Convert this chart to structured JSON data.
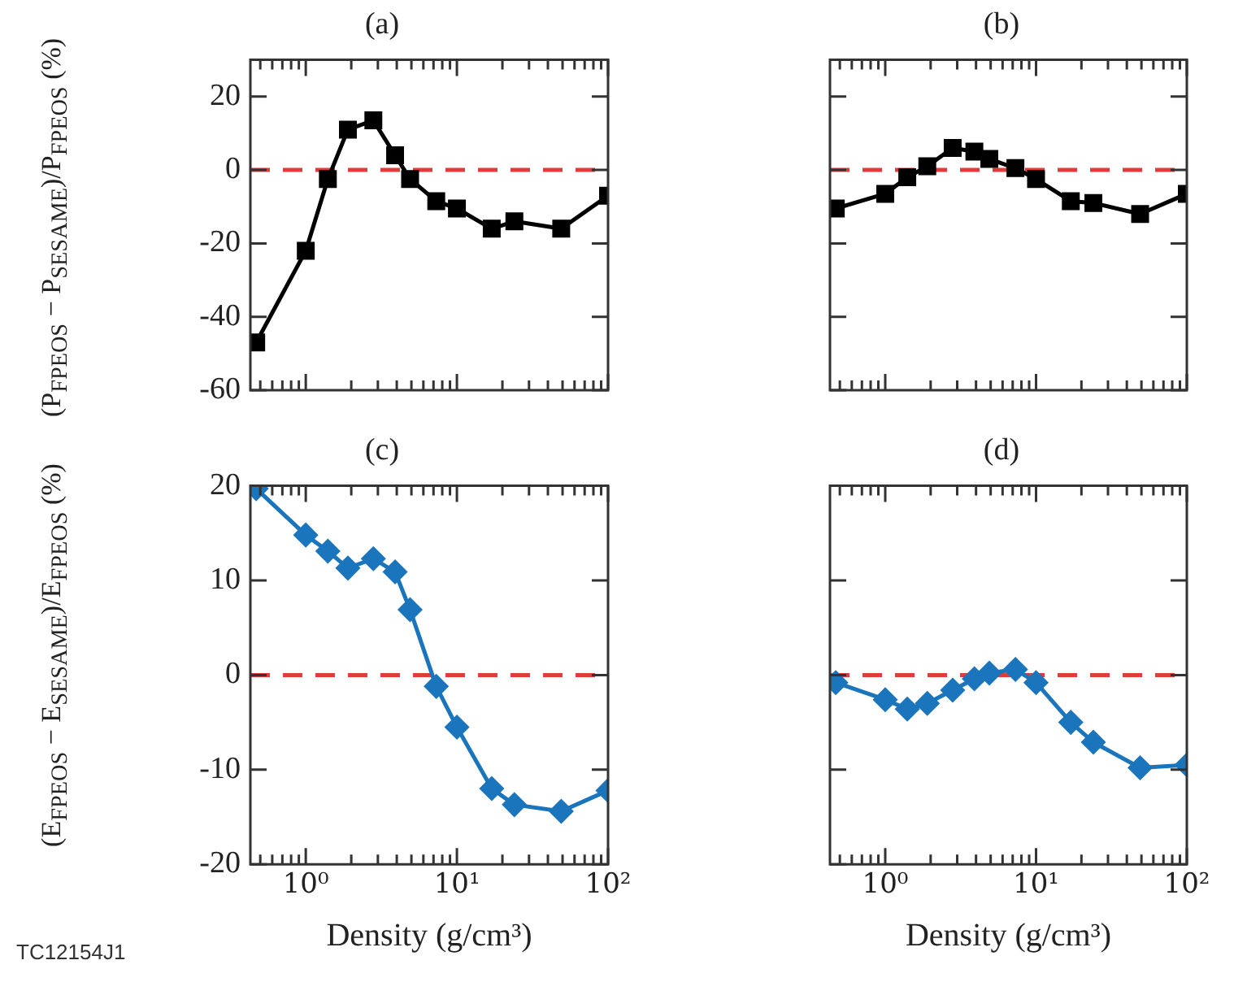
{
  "chart_data": [
    {
      "type": "line",
      "title": "(a)",
      "ylabel": "(P$_{FPEOS}$ − P$_{SESAME}$)/P$_{FPEOS}$ (%)",
      "x": [
        0.47,
        1,
        1.4,
        1.9,
        2.8,
        3.9,
        4.9,
        7.3,
        10,
        17,
        24,
        49,
        100
      ],
      "series": [
        {
          "color": "#000000",
          "values": [
            -47,
            -22,
            -2.5,
            11,
            13.5,
            4,
            -2.5,
            -8.5,
            -10.5,
            -16,
            -14,
            -16,
            -7
          ]
        }
      ],
      "xlim": [
        0.43,
        100
      ],
      "ylim": [
        -60,
        30
      ],
      "log": "x",
      "marker": "square",
      "tick_labels": "y",
      "xticks": [
        {
          "value": 0.5,
          "label": null
        },
        {
          "value": 0.6,
          "label": null
        },
        {
          "value": 0.7,
          "label": null
        },
        {
          "value": 0.8,
          "label": null
        },
        {
          "value": 0.9,
          "label": null
        },
        {
          "value": 1,
          "label": null
        },
        {
          "value": 2,
          "label": null
        },
        {
          "value": 3,
          "label": null
        },
        {
          "value": 4,
          "label": null
        },
        {
          "value": 5,
          "label": null
        },
        {
          "value": 6,
          "label": null
        },
        {
          "value": 7,
          "label": null
        },
        {
          "value": 8,
          "label": null
        },
        {
          "value": 9,
          "label": null
        },
        {
          "value": 10,
          "label": null
        },
        {
          "value": 20,
          "label": null
        },
        {
          "value": 30,
          "label": null
        },
        {
          "value": 40,
          "label": null
        },
        {
          "value": 50,
          "label": null
        },
        {
          "value": 60,
          "label": null
        },
        {
          "value": 70,
          "label": null
        },
        {
          "value": 80,
          "label": null
        },
        {
          "value": 90,
          "label": null
        },
        {
          "value": 100,
          "label": null
        }
      ],
      "yticks": [
        -60,
        -40,
        -20,
        0,
        20
      ],
      "ref_lines": [
        {
          "axis": "y",
          "value": 0,
          "color": "#e03c3c",
          "line_style": "dashed"
        }
      ]
    },
    {
      "type": "line",
      "title": "(b)",
      "x": [
        0.47,
        1,
        1.4,
        1.9,
        2.8,
        3.9,
        4.9,
        7.3,
        10,
        17,
        24,
        49,
        100
      ],
      "series": [
        {
          "color": "#000000",
          "values": [
            -10.5,
            -6.5,
            -2,
            1,
            6,
            5,
            3,
            0.5,
            -2.5,
            -8.5,
            -9,
            -12,
            -6.5
          ]
        }
      ],
      "xlim": [
        0.43,
        100
      ],
      "ylim": [
        -60,
        30
      ],
      "log": "x",
      "marker": "square",
      "tick_labels": false,
      "xticks": [
        {
          "value": 0.5,
          "label": null
        },
        {
          "value": 0.6,
          "label": null
        },
        {
          "value": 0.7,
          "label": null
        },
        {
          "value": 0.8,
          "label": null
        },
        {
          "value": 0.9,
          "label": null
        },
        {
          "value": 1,
          "label": null
        },
        {
          "value": 2,
          "label": null
        },
        {
          "value": 3,
          "label": null
        },
        {
          "value": 4,
          "label": null
        },
        {
          "value": 5,
          "label": null
        },
        {
          "value": 6,
          "label": null
        },
        {
          "value": 7,
          "label": null
        },
        {
          "value": 8,
          "label": null
        },
        {
          "value": 9,
          "label": null
        },
        {
          "value": 10,
          "label": null
        },
        {
          "value": 20,
          "label": null
        },
        {
          "value": 30,
          "label": null
        },
        {
          "value": 40,
          "label": null
        },
        {
          "value": 50,
          "label": null
        },
        {
          "value": 60,
          "label": null
        },
        {
          "value": 70,
          "label": null
        },
        {
          "value": 80,
          "label": null
        },
        {
          "value": 90,
          "label": null
        },
        {
          "value": 100,
          "label": null
        }
      ],
      "yticks": [
        -60,
        -40,
        -20,
        0,
        20
      ],
      "ref_lines": [
        {
          "axis": "y",
          "value": 0,
          "color": "#e03c3c",
          "line_style": "dashed"
        }
      ]
    },
    {
      "type": "line",
      "title": "(c)",
      "xlabel": "Density (g/cm³)",
      "ylabel": "(E$_{FPEOS}$ − E$_{SESAME}$)/E$_{FPEOS}$ (%)",
      "x": [
        0.47,
        1,
        1.4,
        1.9,
        2.8,
        3.9,
        4.9,
        7.3,
        10,
        17,
        24,
        49,
        100
      ],
      "series": [
        {
          "color": "#1a75bc",
          "values": [
            19.7,
            14.8,
            13.1,
            11.3,
            12.3,
            10.9,
            6.9,
            -1.2,
            -5.5,
            -12,
            -13.7,
            -14.4,
            -12.2
          ]
        }
      ],
      "xlim": [
        0.43,
        100
      ],
      "ylim": [
        -20,
        20
      ],
      "log": "x",
      "marker": "diamond",
      "xticks": [
        {
          "value": 0.5,
          "label": null
        },
        {
          "value": 0.6,
          "label": null
        },
        {
          "value": 0.7,
          "label": null
        },
        {
          "value": 0.8,
          "label": null
        },
        {
          "value": 0.9,
          "label": null
        },
        {
          "value": 1,
          "label": "10⁰"
        },
        {
          "value": 2,
          "label": null
        },
        {
          "value": 3,
          "label": null
        },
        {
          "value": 4,
          "label": null
        },
        {
          "value": 5,
          "label": null
        },
        {
          "value": 6,
          "label": null
        },
        {
          "value": 7,
          "label": null
        },
        {
          "value": 8,
          "label": null
        },
        {
          "value": 9,
          "label": null
        },
        {
          "value": 10,
          "label": "10¹"
        },
        {
          "value": 20,
          "label": null
        },
        {
          "value": 30,
          "label": null
        },
        {
          "value": 40,
          "label": null
        },
        {
          "value": 50,
          "label": null
        },
        {
          "value": 60,
          "label": null
        },
        {
          "value": 70,
          "label": null
        },
        {
          "value": 80,
          "label": null
        },
        {
          "value": 90,
          "label": null
        },
        {
          "value": 100,
          "label": "10²"
        }
      ],
      "yticks": [
        -20,
        -10,
        0,
        10,
        20
      ],
      "ref_lines": [
        {
          "axis": "y",
          "value": 0,
          "color": "#e03c3c",
          "line_style": "dashed"
        }
      ],
      "annotations": [
        "TC12154J1"
      ]
    },
    {
      "type": "line",
      "title": "(d)",
      "xlabel": "Density (g/cm³)",
      "x": [
        0.47,
        1,
        1.4,
        1.9,
        2.8,
        3.9,
        4.9,
        7.3,
        10,
        17,
        24,
        49,
        100
      ],
      "series": [
        {
          "color": "#1a75bc",
          "values": [
            -0.8,
            -2.6,
            -3.6,
            -3,
            -1.6,
            -0.4,
            0.2,
            0.6,
            -0.8,
            -5,
            -7.1,
            -9.8,
            -9.5
          ]
        }
      ],
      "xlim": [
        0.43,
        100
      ],
      "ylim": [
        -20,
        20
      ],
      "log": "x",
      "marker": "diamond",
      "tick_labels": "x",
      "xticks": [
        {
          "value": 0.5,
          "label": null
        },
        {
          "value": 0.6,
          "label": null
        },
        {
          "value": 0.7,
          "label": null
        },
        {
          "value": 0.8,
          "label": null
        },
        {
          "value": 0.9,
          "label": null
        },
        {
          "value": 1,
          "label": "10⁰"
        },
        {
          "value": 2,
          "label": null
        },
        {
          "value": 3,
          "label": null
        },
        {
          "value": 4,
          "label": null
        },
        {
          "value": 5,
          "label": null
        },
        {
          "value": 6,
          "label": null
        },
        {
          "value": 7,
          "label": null
        },
        {
          "value": 8,
          "label": null
        },
        {
          "value": 9,
          "label": null
        },
        {
          "value": 10,
          "label": "10¹"
        },
        {
          "value": 20,
          "label": null
        },
        {
          "value": 30,
          "label": null
        },
        {
          "value": 40,
          "label": null
        },
        {
          "value": 50,
          "label": null
        },
        {
          "value": 60,
          "label": null
        },
        {
          "value": 70,
          "label": null
        },
        {
          "value": 80,
          "label": null
        },
        {
          "value": 90,
          "label": null
        },
        {
          "value": 100,
          "label": "10²"
        }
      ],
      "yticks": [
        -20,
        -10,
        0,
        10,
        20
      ],
      "ref_lines": [
        {
          "axis": "y",
          "value": 0,
          "color": "#e03c3c",
          "line_style": "dashed"
        }
      ]
    }
  ]
}
